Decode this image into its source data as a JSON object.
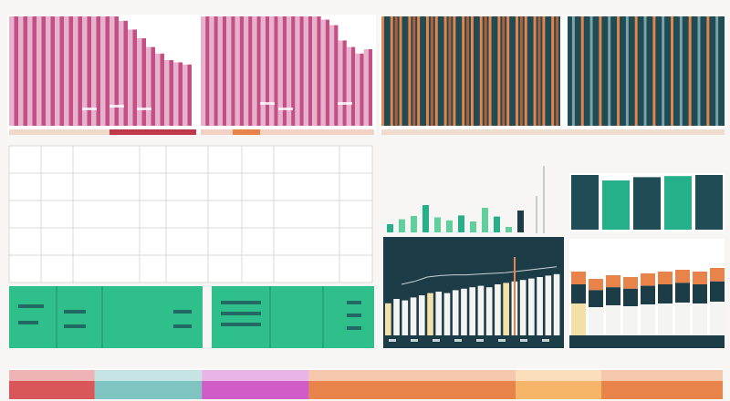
{
  "palette": {
    "background": "#f7f6f4",
    "pink": "#c44f86",
    "pink_stripe": "#e7b3cc",
    "magenta": "#b44f94",
    "dark_teal": "#1f4c55",
    "navy": "#1c3c48",
    "orange": "#e8834a",
    "teal_green": "#26b08a",
    "mint": "#2fbf8a",
    "cream": "#f3e0a8",
    "white_bar": "#f4f4f2",
    "grid": "#d9d9d6"
  },
  "chart_data": [
    {
      "id": "pink-area-left",
      "type": "area",
      "title": "",
      "x": [
        0,
        1,
        2,
        3,
        4,
        5,
        6,
        7,
        8,
        9,
        10,
        11,
        12,
        13,
        14,
        15,
        16,
        17,
        18,
        19
      ],
      "values": [
        100,
        100,
        100,
        100,
        100,
        100,
        100,
        100,
        100,
        100,
        100,
        100,
        96,
        88,
        80,
        72,
        66,
        60,
        58,
        56
      ],
      "ylim": [
        0,
        100
      ]
    },
    {
      "id": "pink-area-right",
      "type": "area",
      "title": "",
      "x": [
        0,
        1,
        2,
        3,
        4,
        5,
        6,
        7,
        8,
        9,
        10,
        11,
        12,
        13,
        14,
        15,
        16,
        17,
        18,
        19
      ],
      "values": [
        100,
        100,
        100,
        100,
        100,
        100,
        100,
        100,
        100,
        100,
        100,
        100,
        100,
        100,
        97,
        92,
        78,
        72,
        66,
        70
      ],
      "ylim": [
        0,
        100
      ]
    },
    {
      "id": "striped-bars-left",
      "type": "bar",
      "title": "",
      "values": [
        100,
        100,
        100,
        100,
        100,
        100,
        100,
        100,
        100,
        100,
        100,
        100,
        100,
        100,
        100,
        100,
        100,
        100,
        100,
        100,
        100,
        100,
        100,
        100,
        100,
        100,
        100,
        100,
        100,
        100,
        100,
        100,
        100,
        100,
        100,
        100,
        100,
        100,
        100,
        100
      ],
      "ylim": [
        0,
        100
      ]
    },
    {
      "id": "striped-bars-right",
      "type": "bar",
      "title": "",
      "values": [
        100,
        100,
        100,
        100,
        100,
        100,
        100,
        100,
        100,
        100,
        100,
        100,
        100,
        100,
        100,
        100,
        100,
        100,
        100,
        100,
        100,
        100,
        100,
        100,
        100,
        100,
        100,
        100,
        100,
        100,
        100,
        100,
        100,
        100,
        100
      ],
      "ylim": [
        0,
        100
      ]
    },
    {
      "id": "mini-green-bars",
      "type": "bar",
      "title": "",
      "values": [
        30,
        48,
        60,
        100,
        55,
        44,
        62,
        40,
        90,
        58,
        20,
        80
      ],
      "ylim": [
        0,
        100
      ]
    },
    {
      "id": "blocks-top-right",
      "type": "bar",
      "title": "",
      "values": [
        100,
        90,
        96,
        98,
        100
      ],
      "ylim": [
        0,
        100
      ]
    },
    {
      "id": "navy-line-bars",
      "type": "bar",
      "title": "",
      "values": [
        44,
        50,
        48,
        52,
        55,
        58,
        60,
        58,
        62,
        64,
        66,
        68,
        66,
        70,
        72,
        74,
        76,
        78,
        80,
        82,
        84
      ],
      "line": [
        60,
        64,
        70,
        72,
        73,
        73,
        74,
        75,
        76,
        78,
        80,
        82,
        84
      ],
      "ylim": [
        0,
        100
      ]
    },
    {
      "id": "stacked-blocks",
      "type": "bar",
      "title": "",
      "values": [
        70,
        62,
        66,
        64,
        68,
        70,
        72,
        70,
        74
      ],
      "ylim": [
        0,
        100
      ]
    }
  ],
  "footer_segments": [
    {
      "color": "#d9575a",
      "weight": 12
    },
    {
      "color": "#7ec4c0",
      "weight": 15
    },
    {
      "color": "#cf5cc7",
      "weight": 15
    },
    {
      "color": "#e8834a",
      "weight": 29
    },
    {
      "color": "#f5b66a",
      "weight": 12
    },
    {
      "color": "#e8834a",
      "weight": 17
    }
  ]
}
